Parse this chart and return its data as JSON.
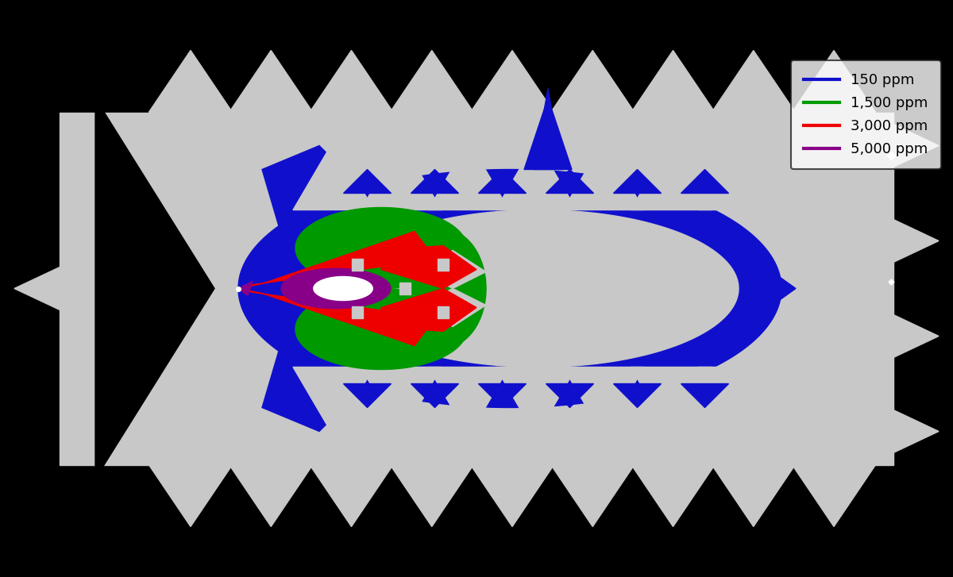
{
  "figure_bg": "#000000",
  "map_color": "#c8c8c8",
  "blue_color": "#1010cc",
  "green_color": "#009900",
  "red_color": "#ee0000",
  "purple_color": "#880088",
  "white_color": "#ffffff",
  "legend_labels": [
    "150 ppm",
    "1,500 ppm",
    "3,000 ppm",
    "5,000 ppm"
  ],
  "legend_colors": [
    "#1010cc",
    "#009900",
    "#ee0000",
    "#880088"
  ],
  "figsize": [
    12.0,
    7.27
  ],
  "dpi": 100,
  "xlim": [
    -6.5,
    13.5
  ],
  "ylim": [
    -5.2,
    5.2
  ]
}
